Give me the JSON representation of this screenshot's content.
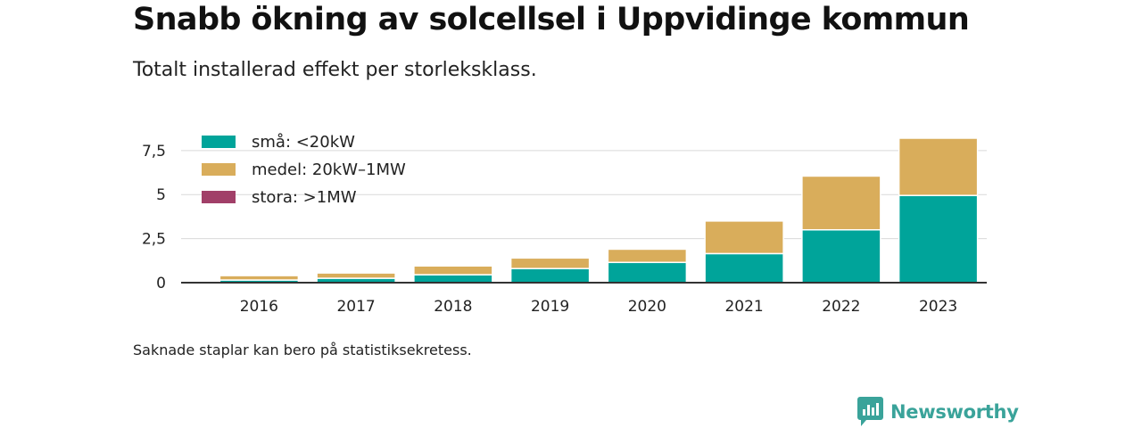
{
  "title": "Snabb ökning av solcellsel i Uppvidinge kommun",
  "subtitle": "Totalt installerad effekt per storleksklass.",
  "footnote": "Saknade staplar kan bero på statistiksekretess.",
  "brand": {
    "name": "Newsworthy",
    "icon": "newsworthy-logo-icon",
    "color": "#3aa39a"
  },
  "chart_data": {
    "type": "bar",
    "stacked": true,
    "categories": [
      "2016",
      "2017",
      "2018",
      "2019",
      "2020",
      "2021",
      "2022",
      "2023"
    ],
    "series": [
      {
        "name": "små: <20kW",
        "color": "#00a49a",
        "values": [
          0.15,
          0.25,
          0.45,
          0.8,
          1.15,
          1.65,
          3.0,
          4.95
        ]
      },
      {
        "name": "medel: 20kW–1MW",
        "color": "#d9ad5b",
        "values": [
          0.25,
          0.3,
          0.5,
          0.6,
          0.75,
          1.85,
          3.05,
          3.25
        ]
      },
      {
        "name": "stora: >1MW",
        "color": "#a13f68",
        "values": [
          0,
          0,
          0,
          0,
          0,
          0,
          0,
          0
        ]
      }
    ],
    "y_ticks": [
      "0",
      "2,5",
      "5",
      "7,5"
    ],
    "ylim": [
      0,
      8.25
    ],
    "xlabel": "",
    "ylabel": "",
    "grid": true,
    "legend_position": "top-left"
  }
}
